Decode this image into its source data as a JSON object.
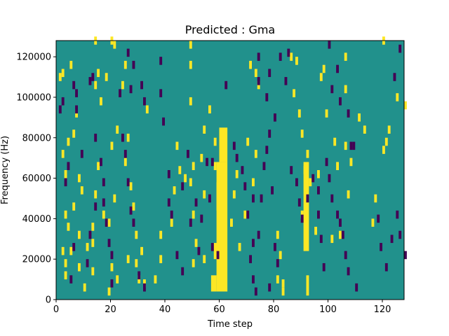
{
  "chart_data": {
    "type": "heatmap",
    "title": "Predicted : Gma",
    "xlabel": "Time step",
    "ylabel": "Frequency (Hz)",
    "xlim": [
      0,
      128
    ],
    "ylim": [
      0,
      128000
    ],
    "x_ticks": [
      0,
      20,
      40,
      60,
      80,
      100,
      120
    ],
    "y_ticks": [
      0,
      20000,
      40000,
      60000,
      80000,
      100000,
      120000
    ],
    "x_tick_labels": [
      "0",
      "20",
      "40",
      "60",
      "80",
      "100",
      "120"
    ],
    "y_tick_labels": [
      "0",
      "20000",
      "40000",
      "60000",
      "80000",
      "100000",
      "120000"
    ],
    "cell_height": 4000,
    "colors": {
      "background": "#21918c",
      "high": "#fde725",
      "low": "#440154"
    },
    "high_bands": [
      {
        "x0": 59,
        "x1": 63,
        "y0": 4000,
        "y1": 68000
      },
      {
        "x0": 60,
        "x1": 63,
        "y0": 68000,
        "y1": 85000
      },
      {
        "x0": 57,
        "x1": 59,
        "y0": 4000,
        "y1": 12000
      },
      {
        "x0": 58,
        "x1": 60,
        "y0": 20000,
        "y1": 28000
      },
      {
        "x0": 59,
        "x1": 60,
        "y0": 44000,
        "y1": 58000
      },
      {
        "x0": 91,
        "x1": 93,
        "y0": 24000,
        "y1": 68000
      },
      {
        "x0": 92,
        "x1": 93,
        "y0": 2000,
        "y1": 12000
      }
    ],
    "high_cells": [
      [
        1,
        108000
      ],
      [
        2,
        110000
      ],
      [
        3,
        60000
      ],
      [
        2,
        70000
      ],
      [
        4,
        76000
      ],
      [
        3,
        40000
      ],
      [
        4,
        34000
      ],
      [
        2,
        22000
      ],
      [
        3,
        16000
      ],
      [
        3,
        10000
      ],
      [
        5,
        114000
      ],
      [
        7,
        90000
      ],
      [
        6,
        80000
      ],
      [
        8,
        58000
      ],
      [
        9,
        52000
      ],
      [
        6,
        44000
      ],
      [
        8,
        30000
      ],
      [
        5,
        22000
      ],
      [
        10,
        4000
      ],
      [
        8,
        14000
      ],
      [
        14,
        126000
      ],
      [
        15,
        110000
      ],
      [
        14,
        104000
      ],
      [
        16,
        96000
      ],
      [
        15,
        64000
      ],
      [
        14,
        50000
      ],
      [
        13,
        34000
      ],
      [
        13,
        26000
      ],
      [
        17,
        40000
      ],
      [
        11,
        24000
      ],
      [
        13,
        12000
      ],
      [
        20,
        126000
      ],
      [
        21,
        124000
      ],
      [
        18,
        108000
      ],
      [
        22,
        82000
      ],
      [
        20,
        74000
      ],
      [
        21,
        48000
      ],
      [
        19,
        36000
      ],
      [
        20,
        14000
      ],
      [
        19,
        2000
      ],
      [
        22,
        8000
      ],
      [
        25,
        114000
      ],
      [
        24,
        104000
      ],
      [
        26,
        78000
      ],
      [
        25,
        66000
      ],
      [
        27,
        54000
      ],
      [
        28,
        44000
      ],
      [
        29,
        16000
      ],
      [
        26,
        18000
      ],
      [
        29,
        30000
      ],
      [
        31,
        22000
      ],
      [
        30,
        8000
      ],
      [
        32,
        6000
      ],
      [
        33,
        92000
      ],
      [
        36,
        8000
      ],
      [
        38,
        18000
      ],
      [
        38,
        30000
      ],
      [
        42,
        36000
      ],
      [
        43,
        52000
      ],
      [
        44,
        74000
      ],
      [
        45,
        62000
      ],
      [
        47,
        58000
      ],
      [
        49,
        56000
      ],
      [
        50,
        40000
      ],
      [
        50,
        16000
      ],
      [
        49,
        96000
      ],
      [
        49,
        114000
      ],
      [
        49,
        124000
      ],
      [
        50,
        64000
      ],
      [
        51,
        26000
      ],
      [
        53,
        68000
      ],
      [
        54,
        82000
      ],
      [
        54,
        50000
      ],
      [
        56,
        92000
      ],
      [
        58,
        64000
      ],
      [
        58,
        76000
      ],
      [
        54,
        18000
      ],
      [
        64,
        36000
      ],
      [
        65,
        50000
      ],
      [
        66,
        60000
      ],
      [
        67,
        24000
      ],
      [
        69,
        40000
      ],
      [
        70,
        76000
      ],
      [
        72,
        56000
      ],
      [
        73,
        70000
      ],
      [
        71,
        114000
      ],
      [
        73,
        110000
      ],
      [
        74,
        104000
      ],
      [
        81,
        30000
      ],
      [
        82,
        20000
      ],
      [
        81,
        8000
      ],
      [
        83,
        6000
      ],
      [
        83,
        2000
      ],
      [
        86,
        118000
      ],
      [
        87,
        100000
      ],
      [
        88,
        116000
      ],
      [
        89,
        90000
      ],
      [
        90,
        80000
      ],
      [
        90,
        40000
      ],
      [
        91,
        62000
      ],
      [
        92,
        70000
      ],
      [
        93,
        56000
      ],
      [
        95,
        32000
      ],
      [
        96,
        60000
      ],
      [
        97,
        108000
      ],
      [
        98,
        112000
      ],
      [
        99,
        90000
      ],
      [
        101,
        28000
      ],
      [
        102,
        76000
      ],
      [
        103,
        64000
      ],
      [
        104,
        30000
      ],
      [
        106,
        118000
      ],
      [
        106,
        102000
      ],
      [
        106,
        74000
      ],
      [
        107,
        50000
      ],
      [
        108,
        66000
      ],
      [
        111,
        88000
      ],
      [
        113,
        82000
      ],
      [
        116,
        36000
      ],
      [
        117,
        48000
      ],
      [
        120,
        72000
      ],
      [
        121,
        76000
      ],
      [
        122,
        82000
      ],
      [
        120,
        126000
      ],
      [
        125,
        98000
      ],
      [
        128,
        94000
      ]
    ],
    "low_cells": [
      [
        1,
        92000
      ],
      [
        2,
        96000
      ],
      [
        3,
        56000
      ],
      [
        4,
        64000
      ],
      [
        6,
        24000
      ],
      [
        5,
        8000
      ],
      [
        7,
        100000
      ],
      [
        6,
        104000
      ],
      [
        7,
        92000
      ],
      [
        9,
        70000
      ],
      [
        12,
        106000
      ],
      [
        13,
        108000
      ],
      [
        14,
        78000
      ],
      [
        14,
        44000
      ],
      [
        12,
        30000
      ],
      [
        11,
        16000
      ],
      [
        16,
        66000
      ],
      [
        17,
        56000
      ],
      [
        17,
        46000
      ],
      [
        18,
        36000
      ],
      [
        19,
        26000
      ],
      [
        20,
        20000
      ],
      [
        20,
        6000
      ],
      [
        23,
        100000
      ],
      [
        24,
        78000
      ],
      [
        25,
        70000
      ],
      [
        26,
        56000
      ],
      [
        27,
        42000
      ],
      [
        28,
        36000
      ],
      [
        30,
        10000
      ],
      [
        26,
        120000
      ],
      [
        27,
        102000
      ],
      [
        28,
        114000
      ],
      [
        31,
        104000
      ],
      [
        32,
        96000
      ],
      [
        32,
        4000
      ],
      [
        38,
        116000
      ],
      [
        38,
        100000
      ],
      [
        39,
        86000
      ],
      [
        41,
        60000
      ],
      [
        41,
        46000
      ],
      [
        42,
        40000
      ],
      [
        44,
        20000
      ],
      [
        46,
        12000
      ],
      [
        46,
        54000
      ],
      [
        48,
        70000
      ],
      [
        49,
        36000
      ],
      [
        51,
        46000
      ],
      [
        52,
        22000
      ],
      [
        53,
        38000
      ],
      [
        55,
        66000
      ],
      [
        56,
        48000
      ],
      [
        57,
        66000
      ],
      [
        57,
        24000
      ],
      [
        59,
        20000
      ],
      [
        62,
        104000
      ],
      [
        65,
        74000
      ],
      [
        66,
        68000
      ],
      [
        68,
        62000
      ],
      [
        69,
        54000
      ],
      [
        70,
        40000
      ],
      [
        72,
        48000
      ],
      [
        71,
        18000
      ],
      [
        72,
        8000
      ],
      [
        73,
        2000
      ],
      [
        72,
        26000
      ],
      [
        74,
        30000
      ],
      [
        75,
        48000
      ],
      [
        76,
        64000
      ],
      [
        77,
        72000
      ],
      [
        78,
        80000
      ],
      [
        79,
        52000
      ],
      [
        80,
        24000
      ],
      [
        81,
        16000
      ],
      [
        78,
        4000
      ],
      [
        74,
        118000
      ],
      [
        74,
        106000
      ],
      [
        77,
        98000
      ],
      [
        78,
        110000
      ],
      [
        80,
        88000
      ],
      [
        82,
        118000
      ],
      [
        84,
        106000
      ],
      [
        85,
        120000
      ],
      [
        86,
        62000
      ],
      [
        88,
        56000
      ],
      [
        89,
        46000
      ],
      [
        90,
        38000
      ],
      [
        92,
        48000
      ],
      [
        94,
        58000
      ],
      [
        96,
        52000
      ],
      [
        96,
        40000
      ],
      [
        97,
        28000
      ],
      [
        98,
        14000
      ],
      [
        99,
        66000
      ],
      [
        100,
        58000
      ],
      [
        101,
        48000
      ],
      [
        103,
        40000
      ],
      [
        104,
        36000
      ],
      [
        105,
        30000
      ],
      [
        106,
        20000
      ],
      [
        107,
        12000
      ],
      [
        108,
        74000
      ],
      [
        100,
        124000
      ],
      [
        101,
        102000
      ],
      [
        103,
        112000
      ],
      [
        104,
        96000
      ],
      [
        107,
        90000
      ],
      [
        109,
        74000
      ],
      [
        110,
        4000
      ],
      [
        118,
        38000
      ],
      [
        119,
        24000
      ],
      [
        121,
        14000
      ],
      [
        123,
        28000
      ],
      [
        125,
        40000
      ],
      [
        126,
        30000
      ],
      [
        128,
        20000
      ],
      [
        124,
        108000
      ],
      [
        126,
        122000
      ]
    ]
  }
}
